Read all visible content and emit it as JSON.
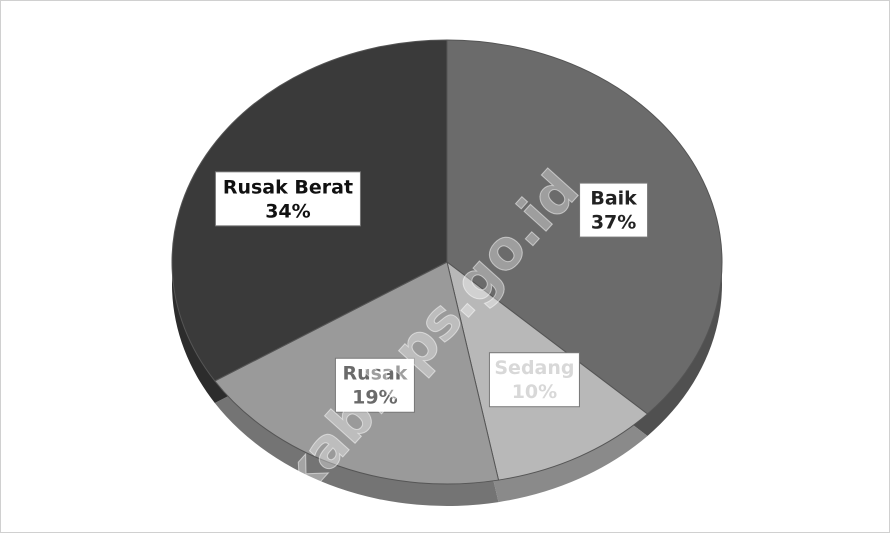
{
  "chart_data": {
    "type": "pie",
    "categories": [
      "Baik",
      "Sedang",
      "Rusak",
      "Rusak Berat"
    ],
    "values": [
      37,
      10,
      19,
      34
    ],
    "value_labels": [
      "37%",
      "10%",
      "19%",
      "34%"
    ],
    "colors": [
      "#6b6b6b",
      "#b8b8b8",
      "#9a9a9a",
      "#3a3a3a"
    ],
    "label_colors": [
      "#222222",
      "#d8d8d8",
      "#6a6a6a",
      "#111111"
    ],
    "watermark": "okab.bps.go.id"
  }
}
